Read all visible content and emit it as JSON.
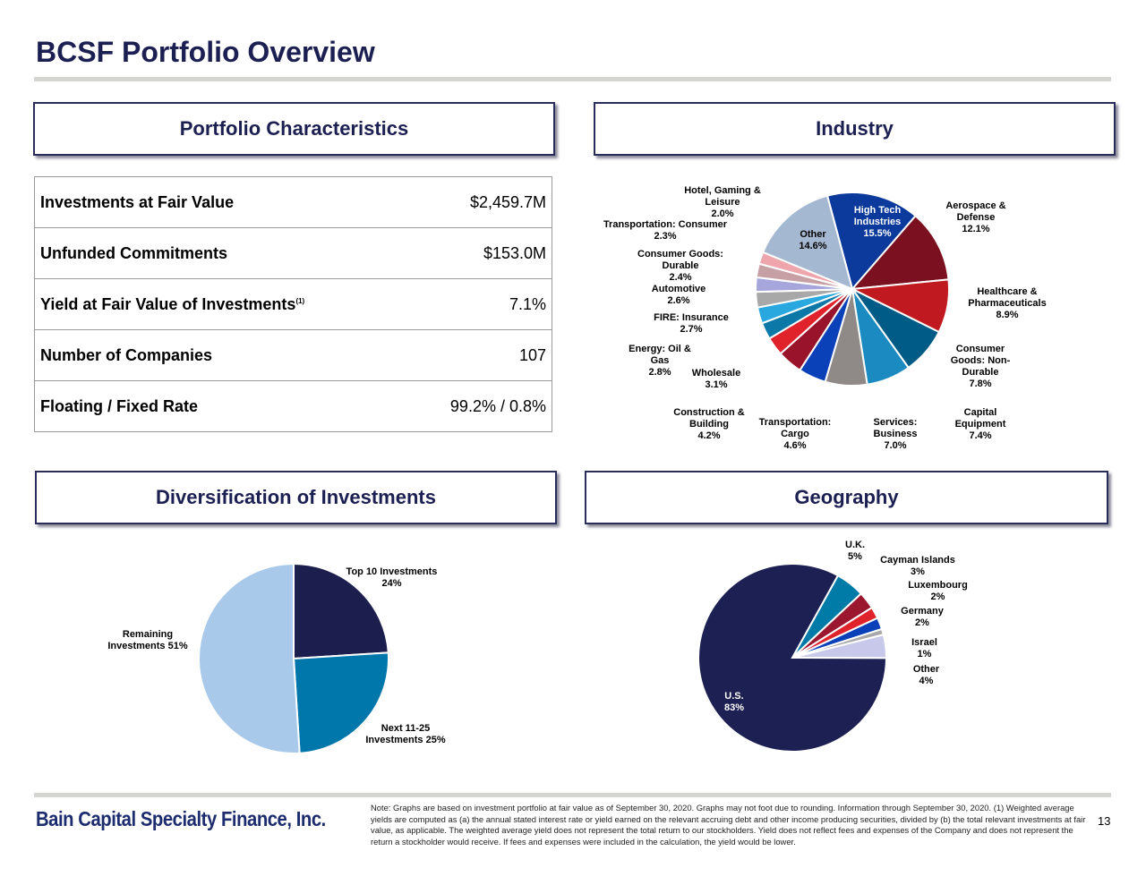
{
  "title": "BCSF Portfolio Overview",
  "sections": {
    "characteristics": "Portfolio Characteristics",
    "industry": "Industry",
    "diversification": "Diversification of Investments",
    "geography": "Geography"
  },
  "characteristics": [
    {
      "label": "Investments at Fair Value",
      "value": "$2,459.7M"
    },
    {
      "label": "Unfunded Commitments",
      "value": "$153.0M"
    },
    {
      "label": "Yield at Fair Value of Investments",
      "sup": "(1)",
      "value": "7.1%"
    },
    {
      "label": "Number of Companies",
      "value": "107"
    },
    {
      "label": "Floating / Fixed Rate",
      "value": "99.2% / 0.8%"
    }
  ],
  "chart_data": [
    {
      "type": "pie",
      "title": "Industry",
      "categories": [
        "High Tech Industries",
        "Aerospace & Defense",
        "Healthcare & Pharmaceuticals",
        "Consumer Goods: Non-Durable",
        "Capital Equipment",
        "Services: Business",
        "Transportation: Cargo",
        "Construction & Building",
        "Wholesale",
        "Energy: Oil & Gas",
        "FIRE: Insurance",
        "Automotive",
        "Consumer Goods: Durable",
        "Transportation: Consumer",
        "Hotel, Gaming & Leisure",
        "Other"
      ],
      "values": [
        15.5,
        12.1,
        8.9,
        7.8,
        7.4,
        7.0,
        4.6,
        4.2,
        3.1,
        2.8,
        2.7,
        2.6,
        2.4,
        2.3,
        2.0,
        14.6
      ],
      "labels": [
        "High Tech\nIndustries\n15.5%",
        "Aerospace &\nDefense\n12.1%",
        "Healthcare &\nPharmaceuticals\n8.9%",
        "Consumer\nGoods: Non-\nDurable\n7.8%",
        "Capital\nEquipment\n7.4%",
        "Services:\nBusiness\n7.0%",
        "Transportation:\nCargo\n4.6%",
        "Construction &\nBuilding\n4.2%",
        "Wholesale\n3.1%",
        "Energy: Oil &\nGas\n2.8%",
        "FIRE: Insurance\n2.7%",
        "Automotive\n2.6%",
        "Consumer Goods:\nDurable\n2.4%",
        "Transportation: Consumer\n2.3%",
        "Hotel, Gaming &\nLeisure\n2.0%",
        "Other\n14.6%"
      ],
      "colors": [
        "#0b3a9c",
        "#7b1020",
        "#c0191f",
        "#005c86",
        "#1a8ac0",
        "#8f8a87",
        "#0a40b8",
        "#99142a",
        "#e0232b",
        "#0b78a8",
        "#28a8df",
        "#a8a8a8",
        "#a6a6dd",
        "#c7a0a6",
        "#eea5ab",
        "#a5b8d2"
      ],
      "unit": "%"
    },
    {
      "type": "pie",
      "title": "Diversification of Investments",
      "categories": [
        "Top 10 Investments",
        "Next 11-25 Investments",
        "Remaining Investments"
      ],
      "values": [
        24,
        25,
        51
      ],
      "labels": [
        "Top 10 Investments\n24%",
        "Next 11-25\nInvestments 25%",
        "Remaining\nInvestments 51%"
      ],
      "colors": [
        "#1c1f4e",
        "#0077aa",
        "#a9c9ea"
      ],
      "unit": "%"
    },
    {
      "type": "pie",
      "title": "Geography",
      "categories": [
        "U.K.",
        "Cayman Islands",
        "Luxembourg",
        "Germany",
        "Israel",
        "Other",
        "U.S."
      ],
      "values": [
        5,
        3,
        2,
        2,
        1,
        4,
        83
      ],
      "labels": [
        "U.K.\n5%",
        "Cayman Islands\n3%",
        "Luxembourg\n2%",
        "Germany\n2%",
        "Israel\n1%",
        "Other\n4%",
        "U.S.\n83%"
      ],
      "colors": [
        "#007aa6",
        "#9b1730",
        "#e0232b",
        "#0a40b8",
        "#a8a8a8",
        "#c8c8ea",
        "#1c2052"
      ],
      "unit": "%"
    }
  ],
  "footer": {
    "logo": "Bain Capital Specialty Finance, Inc.",
    "note": "Note: Graphs are based on investment portfolio at fair value as of September 30, 2020. Graphs may not foot due to rounding. Information through September 30, 2020. (1) Weighted average yields are computed as (a) the annual stated interest rate or yield earned on the relevant accruing debt and other income producing securities, divided by (b) the total relevant investments at fair value, as applicable. The weighted average yield does not represent the total return to our stockholders. Yield does not reflect fees and expenses of the Company and does not represent the return a stockholder would receive.  If fees and expenses were included in the calculation, the yield would be lower.",
    "page": "13"
  }
}
